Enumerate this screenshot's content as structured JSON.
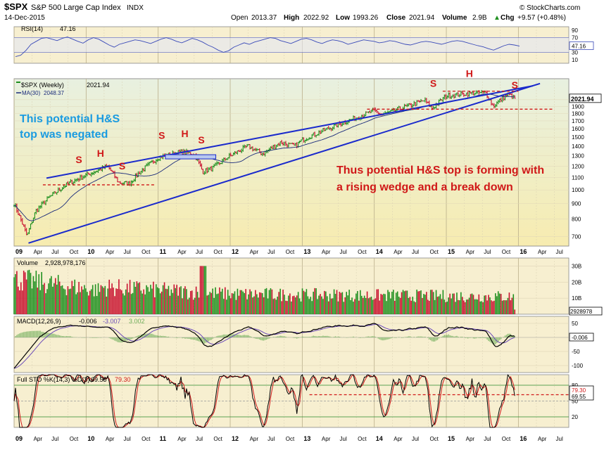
{
  "header": {
    "symbol": "$SPX",
    "name": "S&P 500 Large Cap Index",
    "exchange": "INDX",
    "date": "14-Dec-2015",
    "source": "© StockCharts.com",
    "open_label": "Open",
    "open": "2013.37",
    "high_label": "High",
    "high": "2022.92",
    "low_label": "Low",
    "low": "1993.26",
    "close_label": "Close",
    "close": "2021.94",
    "volume_label": "Volume",
    "volume": "2.9B",
    "chg_label": "Chg",
    "chg": "+9.57 (+0.48%)",
    "chg_arrow": "▲"
  },
  "colors": {
    "price_bg": "#f7f2c4",
    "panel_bg": "#f7efd0",
    "up": "#1e8f1e",
    "down": "#c8102e",
    "trend": "#1a2acc",
    "annot_blue": "#1a9be0",
    "annot_red": "#d01818",
    "rsi": "#3a4ab8",
    "grid": "#c9c0a0"
  },
  "chart_data": [
    {
      "panel": "rsi",
      "type": "line",
      "label": "RSI(14)",
      "value": "47.16",
      "yticks": [
        "90",
        "70",
        "50",
        "30",
        "10"
      ],
      "levels": [
        70,
        30
      ],
      "ylim": [
        0,
        100
      ],
      "values": [
        18,
        22,
        35,
        52,
        60,
        68,
        70,
        66,
        62,
        68,
        72,
        66,
        60,
        55,
        64,
        70,
        66,
        58,
        50,
        44,
        52,
        56,
        60,
        64,
        62,
        58,
        54,
        60,
        66,
        70,
        66,
        60,
        56,
        62,
        68,
        64,
        58,
        50,
        44,
        36,
        30,
        34,
        44,
        50,
        56,
        52,
        58,
        62,
        66,
        70,
        68,
        62,
        58,
        54,
        60,
        66,
        68,
        64,
        58,
        54,
        60,
        64,
        62,
        58,
        52,
        56,
        60,
        64,
        62,
        60,
        56,
        58,
        62,
        60,
        56,
        52,
        50,
        54,
        58,
        60,
        58,
        55,
        52,
        56,
        60,
        62,
        60,
        56,
        52,
        48,
        45,
        40,
        36,
        42,
        48,
        52,
        50,
        47
      ]
    },
    {
      "panel": "price",
      "type": "bar",
      "title": "$SPX (Weekly)",
      "close_value": "2021.94",
      "ma_label": "MA(30)",
      "ma_value": "2048.37",
      "last_price": "2021.94",
      "yticks": [
        2000,
        1900,
        1800,
        1700,
        1600,
        1500,
        1400,
        1300,
        1200,
        1100,
        1000,
        900,
        800,
        700
      ],
      "ylim": [
        650,
        2350
      ],
      "y_scale": "log",
      "x_labels": [
        "09",
        "Apr",
        "Jul",
        "Oct",
        "10",
        "Apr",
        "Jul",
        "Oct",
        "11",
        "Apr",
        "Jul",
        "Oct",
        "12",
        "Apr",
        "Jul",
        "Oct",
        "13",
        "Apr",
        "Jul",
        "Oct",
        "14",
        "Apr",
        "Jul",
        "Oct",
        "15",
        "Apr",
        "Jul",
        "Oct",
        "16",
        "Apr",
        "Jul"
      ],
      "close_waypoints": [
        [
          2009.0,
          900
        ],
        [
          2009.18,
          700
        ],
        [
          2009.3,
          850
        ],
        [
          2009.5,
          950
        ],
        [
          2009.75,
          1050
        ],
        [
          2010.0,
          1120
        ],
        [
          2010.3,
          1200
        ],
        [
          2010.45,
          1060
        ],
        [
          2010.6,
          1050
        ],
        [
          2010.75,
          1150
        ],
        [
          2011.0,
          1280
        ],
        [
          2011.3,
          1340
        ],
        [
          2011.5,
          1320
        ],
        [
          2011.62,
          1150
        ],
        [
          2011.75,
          1180
        ],
        [
          2012.0,
          1300
        ],
        [
          2012.25,
          1400
        ],
        [
          2012.45,
          1320
        ],
        [
          2012.7,
          1440
        ],
        [
          2012.9,
          1400
        ],
        [
          2013.0,
          1470
        ],
        [
          2013.3,
          1580
        ],
        [
          2013.6,
          1690
        ],
        [
          2013.85,
          1780
        ],
        [
          2014.0,
          1840
        ],
        [
          2014.1,
          1780
        ],
        [
          2014.4,
          1880
        ],
        [
          2014.7,
          1990
        ],
        [
          2014.8,
          1870
        ],
        [
          2015.0,
          2060
        ],
        [
          2015.3,
          2100
        ],
        [
          2015.55,
          2110
        ],
        [
          2015.65,
          1900
        ],
        [
          2015.85,
          2090
        ],
        [
          2015.95,
          2021.94
        ]
      ],
      "annotations": [
        {
          "text": "This potential H&S",
          "color": "blue"
        },
        {
          "text": "top was negated",
          "color": "blue"
        },
        {
          "text": "Thus potential H&S top is forming with",
          "color": "red"
        },
        {
          "text": "a rising wedge and a break down",
          "color": "red"
        },
        {
          "text": "S",
          "x": 2009.9,
          "y": 1230
        },
        {
          "text": "H",
          "x": 2010.2,
          "y": 1290
        },
        {
          "text": "S",
          "x": 2010.5,
          "y": 1170
        },
        {
          "text": "S",
          "x": 2011.05,
          "y": 1480
        },
        {
          "text": "H",
          "x": 2011.37,
          "y": 1500
        },
        {
          "text": "S",
          "x": 2011.6,
          "y": 1430
        },
        {
          "text": "S",
          "x": 2014.82,
          "y": 2210
        },
        {
          "text": "H",
          "x": 2015.32,
          "y": 2380
        },
        {
          "text": "S",
          "x": 2015.95,
          "y": 2180
        }
      ],
      "trendlines": [
        {
          "from": [
            2009.2,
            665
          ],
          "to": [
            2016.3,
            2265
          ]
        },
        {
          "from": [
            2009.45,
            1095
          ],
          "to": [
            2016.2,
            2225
          ]
        }
      ],
      "necklines": [
        {
          "from": [
            2009.4,
            1040
          ],
          "to": [
            2010.95,
            1040
          ]
        },
        {
          "from": [
            2011.1,
            1285
          ],
          "to": [
            2011.8,
            1285
          ]
        },
        {
          "from": [
            2013.9,
            1860
          ],
          "to": [
            2016.5,
            1860
          ]
        },
        {
          "from": [
            2014.95,
            2135
          ],
          "to": [
            2016.0,
            2135
          ]
        }
      ]
    },
    {
      "panel": "volume",
      "type": "bar",
      "label": "Volume",
      "value": "2,928,978,176",
      "last_value": "2928978",
      "yticks": [
        "30B",
        "20B",
        "10B"
      ],
      "ylim": [
        0,
        35
      ]
    },
    {
      "panel": "macd",
      "type": "line",
      "label": "MACD(12,26,9)",
      "macd_value": "-0.006",
      "signal_value": "-3.007",
      "hist_value": "3.002",
      "last_value": "-0.006",
      "yticks": [
        "50",
        "0",
        "-50",
        "-100"
      ],
      "ylim": [
        -125,
        75
      ]
    },
    {
      "panel": "sto",
      "type": "line",
      "label": "Full STO %K(14,3) %D(3)",
      "k_value": "69.55",
      "d_value": "79.30",
      "yticks": [
        "80",
        "50",
        "20"
      ],
      "last_values": [
        "79.30",
        "69.55"
      ],
      "levels": [
        80,
        20
      ],
      "ylim": [
        0,
        100
      ]
    }
  ]
}
